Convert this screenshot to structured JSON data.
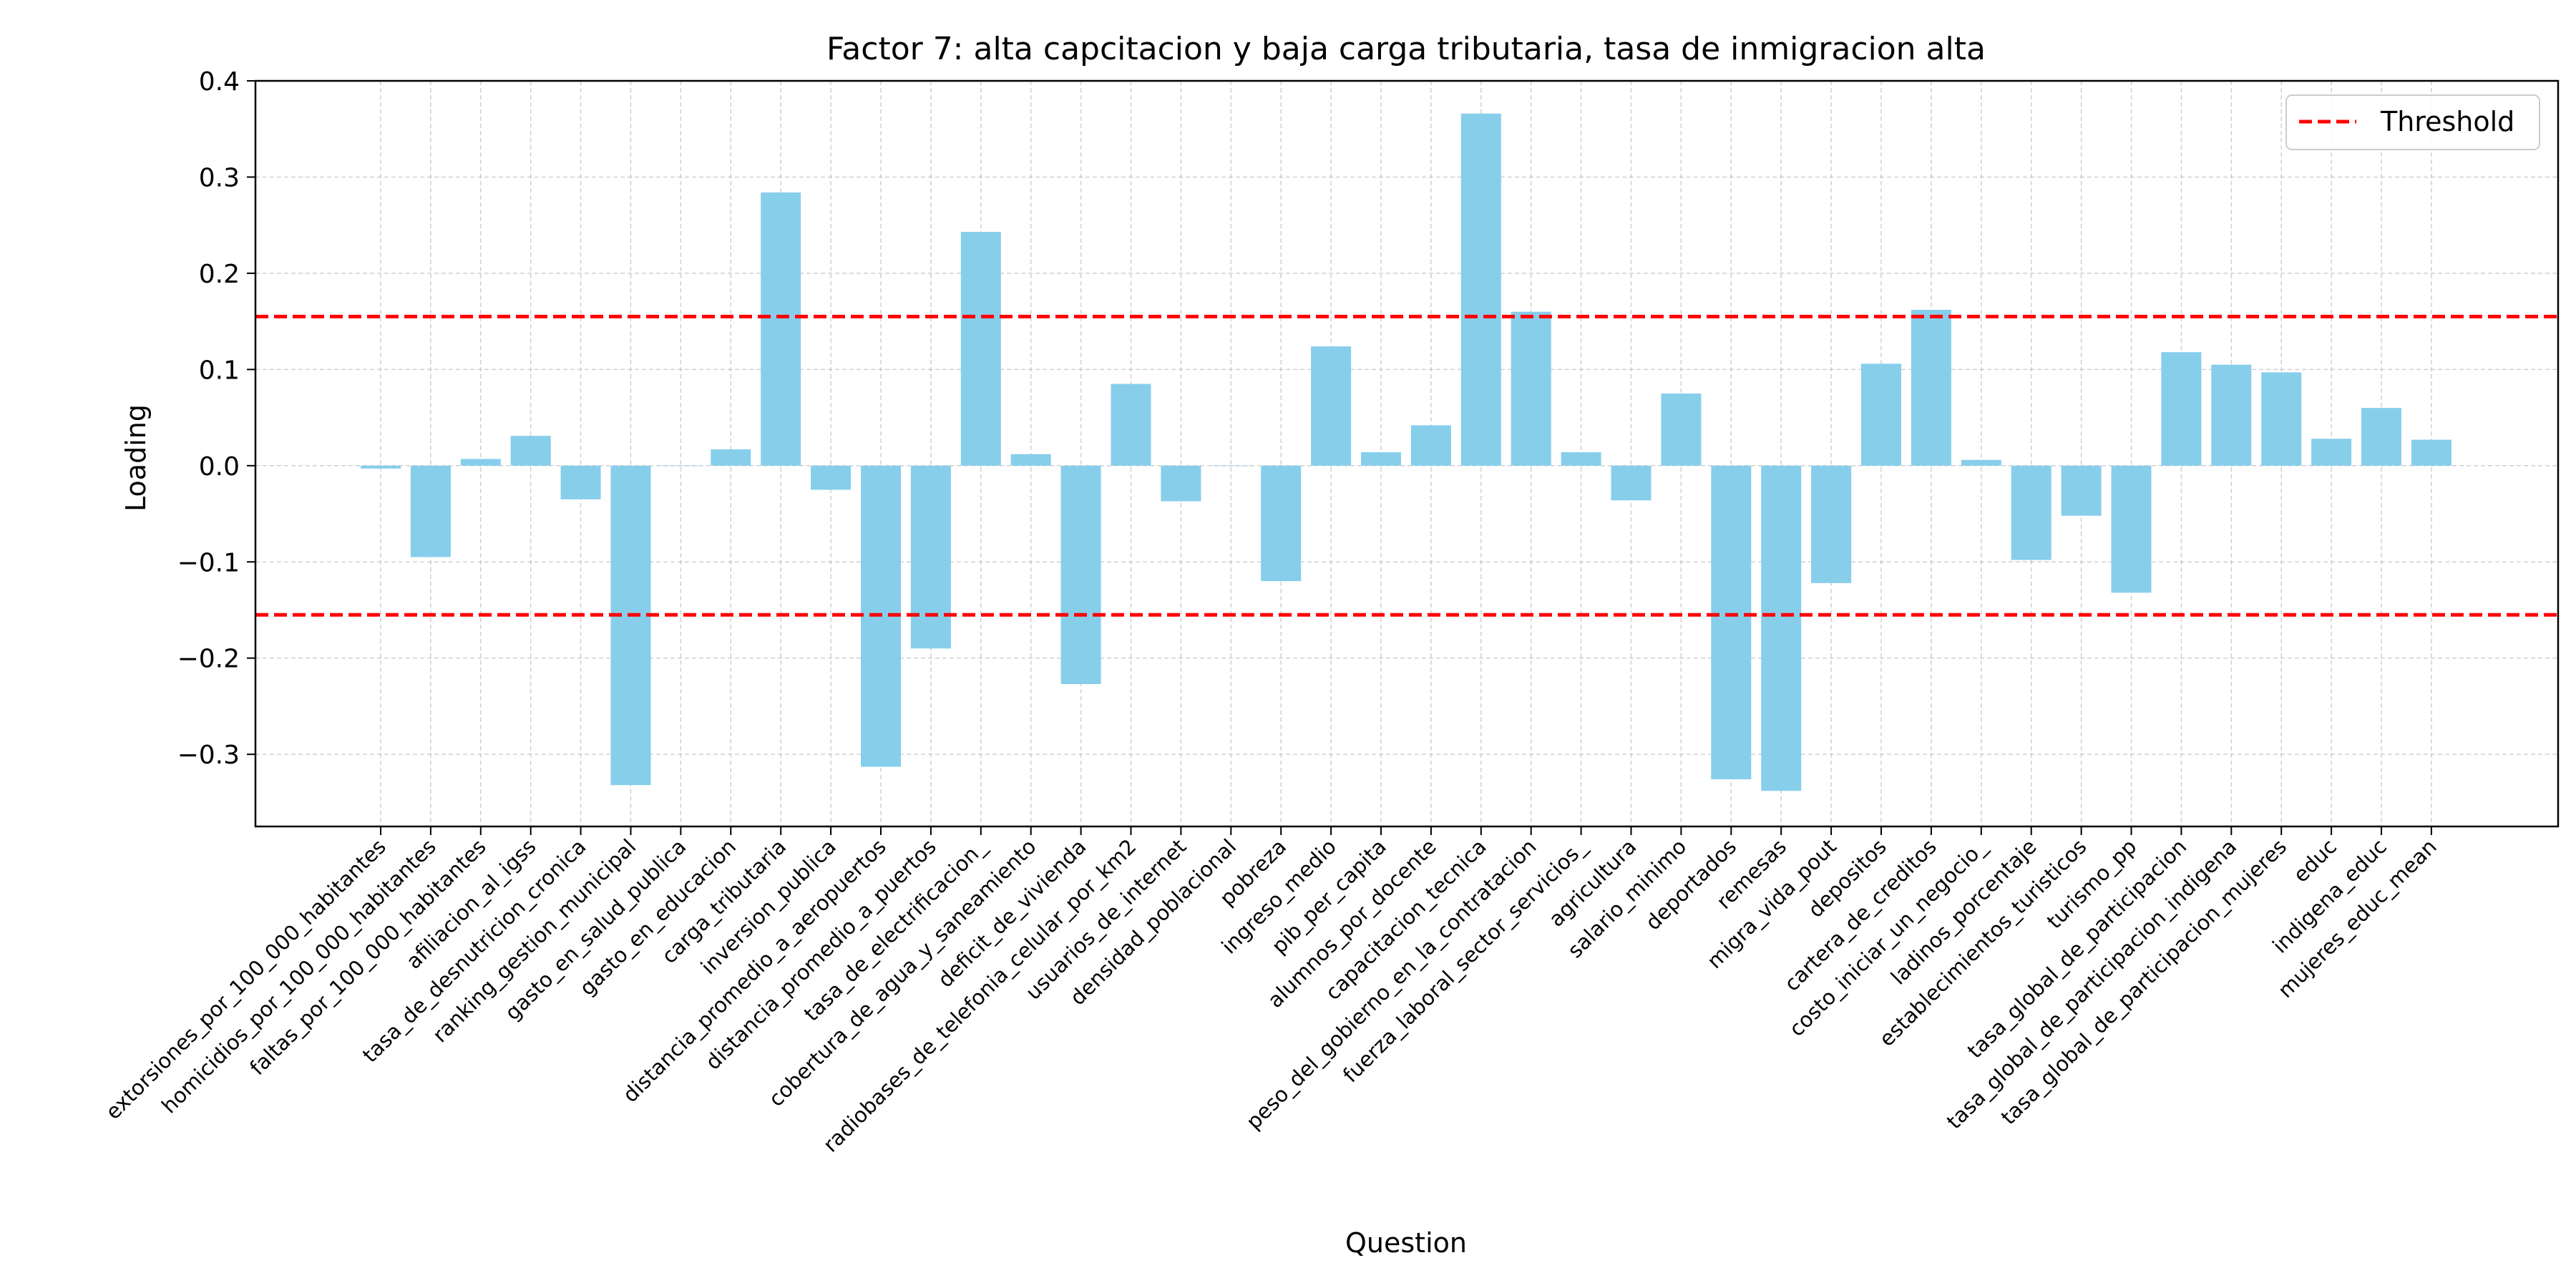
{
  "chart_data": {
    "type": "bar",
    "title": "Factor 7: alta capcitacion y baja carga tributaria, tasa de inmigracion alta",
    "xlabel": "Question",
    "ylabel": "Loading",
    "ylim": [
      -0.375,
      0.4
    ],
    "yticks": [
      -0.3,
      -0.2,
      -0.1,
      0.0,
      0.1,
      0.2,
      0.3,
      0.4
    ],
    "ytick_labels": [
      "−0.3",
      "−0.2",
      "−0.1",
      "0.0",
      "0.1",
      "0.2",
      "0.3",
      "0.4"
    ],
    "grid": true,
    "legend_position": "top-right",
    "bar_color": "#87CEEB",
    "threshold": {
      "name": "Threshold",
      "values": [
        0.155,
        -0.155
      ],
      "color": "#FF0000",
      "style": "dashed"
    },
    "categories": [
      "extorsiones_por_100_000_habitantes",
      "homicidios_por_100_000_habitantes",
      "faltas_por_100_000_habitantes",
      "afiliacion_al_igss",
      "tasa_de_desnutricion_cronica",
      "ranking_gestion_municipal",
      "gasto_en_salud_publica",
      "gasto_en_educacion",
      "carga_tributaria",
      "inversion_publica",
      "distancia_promedio_a_aeropuertos",
      "distancia_promedio_a_puertos",
      "tasa_de_electrificacion_",
      "cobertura_de_agua_y_saneamiento",
      "deficit_de_vivienda",
      "radiobases_de_telefonia_celular_por_km2",
      "usuarios_de_internet",
      "densidad_poblacional",
      "pobreza",
      "ingreso_medio",
      "pib_per_capita",
      "alumnos_por_docente",
      "capacitacion_tecnica",
      "peso_del_gobierno_en_la_contratacion",
      "fuerza_laboral_sector_servicios_",
      "agricultura",
      "salario_minimo",
      "deportados",
      "remesas",
      "migra_vida_pout",
      "depositos",
      "cartera_de_creditos",
      "costo_iniciar_un_negocio_",
      "ladinos_porcentaje",
      "establecimientos_turisticos",
      "turismo_pp",
      "tasa_global_de_participacion",
      "tasa_global_de_participacion_indigena",
      "tasa_global_de_participacion_mujeres",
      "educ",
      "indigena_educ",
      "mujeres_educ_mean"
    ],
    "values": [
      -0.003,
      -0.095,
      0.007,
      0.031,
      -0.035,
      -0.332,
      0.0,
      0.017,
      0.284,
      -0.025,
      -0.313,
      -0.19,
      0.243,
      0.012,
      -0.227,
      0.085,
      -0.037,
      0.0,
      -0.12,
      0.124,
      0.014,
      0.042,
      0.366,
      0.16,
      0.014,
      -0.036,
      0.075,
      -0.326,
      -0.338,
      -0.122,
      0.106,
      0.162,
      0.006,
      -0.098,
      -0.052,
      -0.132,
      0.118,
      0.105,
      0.097,
      0.028,
      0.06,
      0.027
    ]
  }
}
